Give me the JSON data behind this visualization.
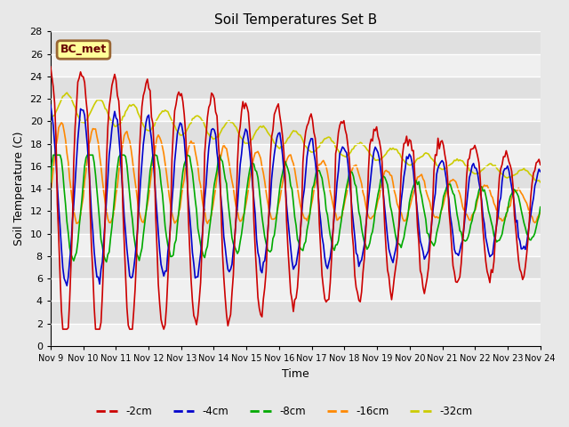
{
  "title": "Soil Temperatures Set B",
  "xlabel": "Time",
  "ylabel": "Soil Temperature (C)",
  "background_color": "#e8e8e8",
  "ylim": [
    0,
    28
  ],
  "yticks": [
    0,
    2,
    4,
    6,
    8,
    10,
    12,
    14,
    16,
    18,
    20,
    22,
    24,
    26,
    28
  ],
  "xtick_labels": [
    "Nov 9",
    "Nov 10",
    "Nov 11",
    "Nov 12",
    "Nov 13",
    "Nov 14",
    "Nov 15",
    "Nov 16",
    "Nov 17",
    "Nov 18",
    "Nov 19",
    "Nov 20",
    "Nov 21",
    "Nov 22",
    "Nov 23",
    "Nov 24"
  ],
  "series_colors": {
    "-2cm": "#cc0000",
    "-4cm": "#0000cc",
    "-8cm": "#00aa00",
    "-16cm": "#ff8800",
    "-32cm": "#cccc00"
  },
  "linewidth": 1.2,
  "legend_label": "BC_met",
  "legend_bg": "#ffff99",
  "legend_border": "#996633",
  "legend_text_color": "#660000"
}
